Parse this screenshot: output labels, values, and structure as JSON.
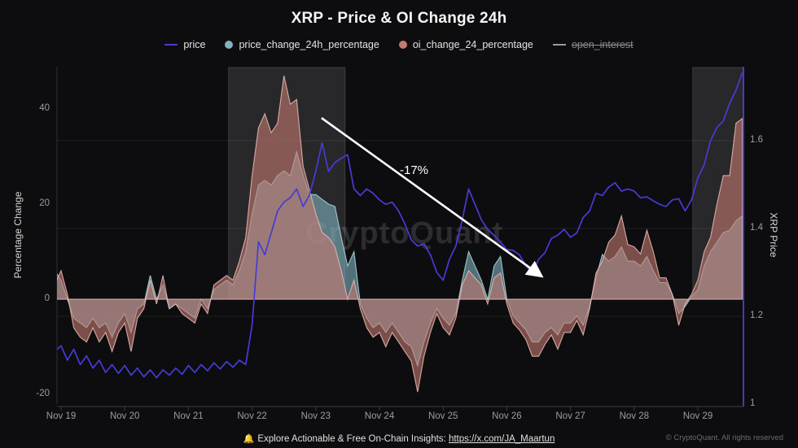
{
  "title": "XRP - Price & OI Change 24h",
  "legend": [
    {
      "label": "price",
      "marker": "line",
      "color": "#473bd6",
      "disabled": false
    },
    {
      "label": "price_change_24h_percentage",
      "marker": "circle",
      "color": "#7fb3bf",
      "disabled": false
    },
    {
      "label": "oi_change_24_percentage",
      "marker": "circle",
      "color": "#c47a72",
      "disabled": false
    },
    {
      "label": "open_interest",
      "marker": "line",
      "color": "#9a9a9a",
      "disabled": true
    }
  ],
  "watermark": "CryptoQuant",
  "footer": {
    "bell_icon": "🔔",
    "text": "Explore Actionable & Free On-Chain Insights:",
    "link": "https://x.com/JA_Maartun",
    "copyright": "© CryptoQuant. All rights reserved"
  },
  "chart_data": {
    "type": "area+line",
    "title": "XRP - Price & OI Change 24h",
    "x_axis": {
      "tick_labels": [
        "Nov 19",
        "Nov 20",
        "Nov 21",
        "Nov 22",
        "Nov 23",
        "Nov 24",
        "Nov 25",
        "Nov 26",
        "Nov 27",
        "Nov 28",
        "Nov 29"
      ],
      "grid": false
    },
    "y_left": {
      "label": "Percentage Change",
      "ticks": [
        "40",
        "20",
        "0",
        "-20"
      ],
      "range": [
        -22,
        49
      ]
    },
    "y_right": {
      "label": "XRP Price",
      "ticks": [
        "1.6",
        "1.4",
        "1.2",
        "1"
      ],
      "range": [
        1.0,
        1.77
      ],
      "grid": true
    },
    "sampling": {
      "x_start_day": -0.1,
      "x_step_day": 0.1,
      "note": "x in days after Nov 19 tick"
    },
    "series": [
      {
        "name": "price",
        "axis": "right",
        "type": "line",
        "color": "#473bd6",
        "values": [
          1.12,
          1.133,
          1.1,
          1.125,
          1.09,
          1.11,
          1.082,
          1.1,
          1.072,
          1.09,
          1.07,
          1.088,
          1.066,
          1.082,
          1.062,
          1.078,
          1.06,
          1.078,
          1.066,
          1.082,
          1.068,
          1.088,
          1.072,
          1.09,
          1.076,
          1.094,
          1.08,
          1.097,
          1.084,
          1.1,
          1.09,
          1.18,
          1.37,
          1.34,
          1.39,
          1.44,
          1.46,
          1.47,
          1.49,
          1.45,
          1.476,
          1.53,
          1.595,
          1.53,
          1.55,
          1.56,
          1.568,
          1.49,
          1.475,
          1.49,
          1.48,
          1.465,
          1.455,
          1.46,
          1.44,
          1.41,
          1.374,
          1.36,
          1.365,
          1.34,
          1.3,
          1.282,
          1.33,
          1.36,
          1.42,
          1.49,
          1.455,
          1.42,
          1.398,
          1.384,
          1.369,
          1.352,
          1.35,
          1.34,
          1.315,
          1.298,
          1.33,
          1.345,
          1.377,
          1.385,
          1.398,
          1.38,
          1.39,
          1.425,
          1.44,
          1.48,
          1.475,
          1.494,
          1.504,
          1.485,
          1.49,
          1.485,
          1.47,
          1.472,
          1.463,
          1.455,
          1.45,
          1.465,
          1.468,
          1.44,
          1.465,
          1.515,
          1.545,
          1.6,
          1.63,
          1.645,
          1.685,
          1.715,
          1.755
        ]
      },
      {
        "name": "price_change_24h_percentage",
        "axis": "left",
        "type": "area",
        "color": "#7fb3bf",
        "values": [
          6,
          4,
          0,
          -4,
          -5,
          -6,
          -4,
          -6,
          -5,
          -8,
          -5,
          -3,
          -7,
          -2,
          -1,
          5,
          0,
          3,
          -2,
          -1,
          -2,
          -3,
          -4,
          0,
          -2,
          2,
          3,
          4,
          3,
          6,
          10,
          18,
          24,
          25,
          24,
          26,
          27,
          26,
          31,
          26,
          22,
          22,
          21,
          20,
          19.5,
          13,
          7,
          10,
          -1,
          -4,
          -6,
          -5,
          -7,
          -5,
          -7,
          -9,
          -10,
          -14,
          -9,
          -5,
          -2,
          -4,
          -5.5,
          -3,
          4,
          10,
          7,
          4,
          0,
          7,
          9,
          0,
          -3.5,
          -5,
          -6.5,
          -9,
          -9,
          -7,
          -6,
          -7.5,
          -5,
          -5,
          -3.5,
          -5.5,
          -1.5,
          4.5,
          9.4,
          8,
          9,
          11,
          8,
          8,
          7,
          9,
          6,
          3.5,
          3.5,
          1,
          -3,
          -1.5,
          0.5,
          2,
          7,
          10,
          12,
          14,
          14.5,
          16.5,
          17.5
        ]
      },
      {
        "name": "oi_change_24_percentage",
        "axis": "left",
        "type": "area",
        "color": "#c47a72",
        "values": [
          3,
          6,
          1,
          -6,
          -8,
          -9,
          -6,
          -9,
          -7,
          -11,
          -7,
          -5,
          -11,
          -4,
          -2,
          4,
          -1,
          5,
          -2,
          -1,
          -3,
          -4,
          -5,
          -1,
          -3,
          3,
          4,
          5,
          4,
          8,
          13,
          26,
          36,
          39,
          35,
          37,
          47,
          41,
          42,
          28,
          23,
          18,
          14,
          13,
          11,
          6,
          0,
          4,
          -2,
          -6,
          -8,
          -7,
          -10,
          -7,
          -9,
          -11,
          -13,
          -19.5,
          -12,
          -7,
          -3,
          -6,
          -7.5,
          -4,
          3,
          6,
          4.5,
          3,
          -1,
          4.5,
          5.5,
          -1,
          -5,
          -6.5,
          -8.5,
          -12,
          -12,
          -9.5,
          -7.5,
          -10.5,
          -7,
          -7,
          -4.5,
          -7.5,
          -2,
          5.5,
          8,
          12,
          13.5,
          17.5,
          11.5,
          11,
          9.5,
          14.5,
          10,
          4.5,
          4.5,
          1,
          -5.5,
          -1,
          1,
          4,
          10,
          13,
          20,
          26,
          26,
          37,
          38
        ]
      }
    ],
    "highlight_regions": [
      {
        "start_day": 2.63,
        "end_day": 4.46
      },
      {
        "start_day": 9.92,
        "end_day": 10.71
      }
    ],
    "annotation": {
      "text": "-17%",
      "from_day": 4.09,
      "from_pct": 38.1,
      "to_day": 7.55,
      "to_pct": 4.8,
      "label_day": 5.55,
      "label_pct": 27.0
    }
  }
}
